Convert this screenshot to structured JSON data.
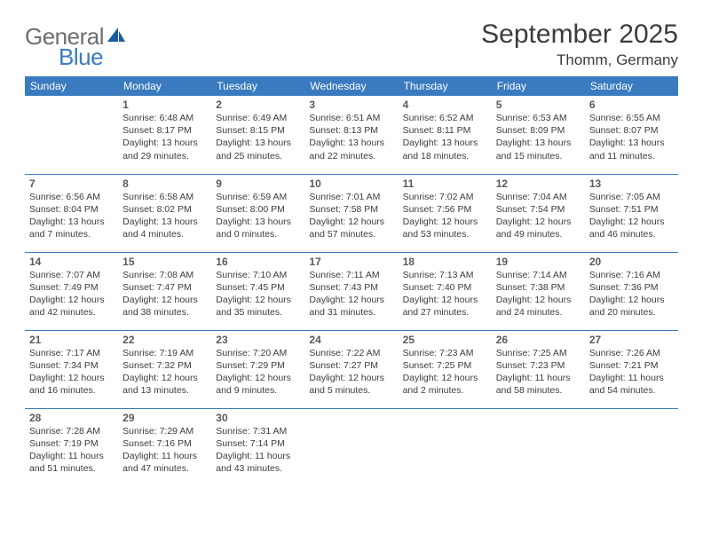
{
  "brand": {
    "general": "General",
    "blue": "Blue",
    "sail_color": "#1a5a9e"
  },
  "header": {
    "month_title": "September 2025",
    "location": "Thomm, Germany"
  },
  "colors": {
    "header_bg": "#3a7bbf",
    "header_text": "#ffffff",
    "border": "#3a7bbf",
    "text": "#3c3c3c",
    "daynum": "#5a5a5a",
    "logo_gray": "#6e6e6e",
    "logo_blue": "#3a7bbf",
    "background": "#ffffff"
  },
  "weekdays": [
    "Sunday",
    "Monday",
    "Tuesday",
    "Wednesday",
    "Thursday",
    "Friday",
    "Saturday"
  ],
  "weeks": [
    [
      null,
      {
        "n": "1",
        "sr": "6:48 AM",
        "ss": "8:17 PM",
        "dl": "13 hours and 29 minutes."
      },
      {
        "n": "2",
        "sr": "6:49 AM",
        "ss": "8:15 PM",
        "dl": "13 hours and 25 minutes."
      },
      {
        "n": "3",
        "sr": "6:51 AM",
        "ss": "8:13 PM",
        "dl": "13 hours and 22 minutes."
      },
      {
        "n": "4",
        "sr": "6:52 AM",
        "ss": "8:11 PM",
        "dl": "13 hours and 18 minutes."
      },
      {
        "n": "5",
        "sr": "6:53 AM",
        "ss": "8:09 PM",
        "dl": "13 hours and 15 minutes."
      },
      {
        "n": "6",
        "sr": "6:55 AM",
        "ss": "8:07 PM",
        "dl": "13 hours and 11 minutes."
      }
    ],
    [
      {
        "n": "7",
        "sr": "6:56 AM",
        "ss": "8:04 PM",
        "dl": "13 hours and 7 minutes."
      },
      {
        "n": "8",
        "sr": "6:58 AM",
        "ss": "8:02 PM",
        "dl": "13 hours and 4 minutes."
      },
      {
        "n": "9",
        "sr": "6:59 AM",
        "ss": "8:00 PM",
        "dl": "13 hours and 0 minutes."
      },
      {
        "n": "10",
        "sr": "7:01 AM",
        "ss": "7:58 PM",
        "dl": "12 hours and 57 minutes."
      },
      {
        "n": "11",
        "sr": "7:02 AM",
        "ss": "7:56 PM",
        "dl": "12 hours and 53 minutes."
      },
      {
        "n": "12",
        "sr": "7:04 AM",
        "ss": "7:54 PM",
        "dl": "12 hours and 49 minutes."
      },
      {
        "n": "13",
        "sr": "7:05 AM",
        "ss": "7:51 PM",
        "dl": "12 hours and 46 minutes."
      }
    ],
    [
      {
        "n": "14",
        "sr": "7:07 AM",
        "ss": "7:49 PM",
        "dl": "12 hours and 42 minutes."
      },
      {
        "n": "15",
        "sr": "7:08 AM",
        "ss": "7:47 PM",
        "dl": "12 hours and 38 minutes."
      },
      {
        "n": "16",
        "sr": "7:10 AM",
        "ss": "7:45 PM",
        "dl": "12 hours and 35 minutes."
      },
      {
        "n": "17",
        "sr": "7:11 AM",
        "ss": "7:43 PM",
        "dl": "12 hours and 31 minutes."
      },
      {
        "n": "18",
        "sr": "7:13 AM",
        "ss": "7:40 PM",
        "dl": "12 hours and 27 minutes."
      },
      {
        "n": "19",
        "sr": "7:14 AM",
        "ss": "7:38 PM",
        "dl": "12 hours and 24 minutes."
      },
      {
        "n": "20",
        "sr": "7:16 AM",
        "ss": "7:36 PM",
        "dl": "12 hours and 20 minutes."
      }
    ],
    [
      {
        "n": "21",
        "sr": "7:17 AM",
        "ss": "7:34 PM",
        "dl": "12 hours and 16 minutes."
      },
      {
        "n": "22",
        "sr": "7:19 AM",
        "ss": "7:32 PM",
        "dl": "12 hours and 13 minutes."
      },
      {
        "n": "23",
        "sr": "7:20 AM",
        "ss": "7:29 PM",
        "dl": "12 hours and 9 minutes."
      },
      {
        "n": "24",
        "sr": "7:22 AM",
        "ss": "7:27 PM",
        "dl": "12 hours and 5 minutes."
      },
      {
        "n": "25",
        "sr": "7:23 AM",
        "ss": "7:25 PM",
        "dl": "12 hours and 2 minutes."
      },
      {
        "n": "26",
        "sr": "7:25 AM",
        "ss": "7:23 PM",
        "dl": "11 hours and 58 minutes."
      },
      {
        "n": "27",
        "sr": "7:26 AM",
        "ss": "7:21 PM",
        "dl": "11 hours and 54 minutes."
      }
    ],
    [
      {
        "n": "28",
        "sr": "7:28 AM",
        "ss": "7:19 PM",
        "dl": "11 hours and 51 minutes."
      },
      {
        "n": "29",
        "sr": "7:29 AM",
        "ss": "7:16 PM",
        "dl": "11 hours and 47 minutes."
      },
      {
        "n": "30",
        "sr": "7:31 AM",
        "ss": "7:14 PM",
        "dl": "11 hours and 43 minutes."
      },
      null,
      null,
      null,
      null
    ]
  ],
  "labels": {
    "sunrise": "Sunrise:",
    "sunset": "Sunset:",
    "daylight": "Daylight:"
  }
}
